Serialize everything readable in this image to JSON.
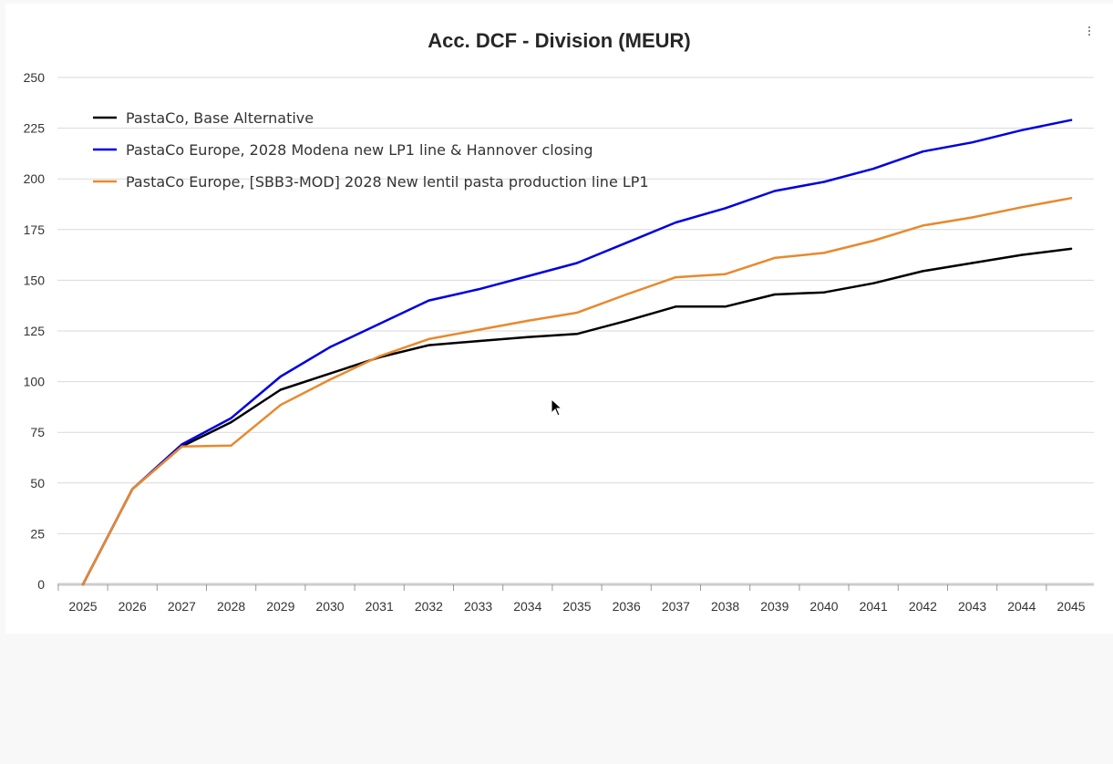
{
  "menu_icon": "more-vertical-icon",
  "chart_data": {
    "type": "line",
    "title": "Acc. DCF - Division (MEUR)",
    "xlabel": "",
    "ylabel": "",
    "ylim": [
      0,
      250
    ],
    "yticks": [
      0,
      25,
      50,
      75,
      100,
      125,
      150,
      175,
      200,
      225,
      250
    ],
    "grid": true,
    "legend_position": "top-left",
    "categories": [
      "2025",
      "2026",
      "2027",
      "2028",
      "2029",
      "2030",
      "2031",
      "2032",
      "2033",
      "2034",
      "2035",
      "2036",
      "2037",
      "2038",
      "2039",
      "2040",
      "2041",
      "2042",
      "2043",
      "2044",
      "2045"
    ],
    "series": [
      {
        "name": "PastaCo, Base Alternative",
        "color": "#000000",
        "values": [
          0,
          47,
          68,
          80,
          96,
          104,
          112,
          118,
          120,
          122,
          123.5,
          130,
          137,
          137,
          143,
          144,
          148.5,
          154.5,
          158.5,
          162.5,
          165.5
        ]
      },
      {
        "name": "PastaCo Europe, 2028 Modena new LP1 line & Hannover closing",
        "color": "#0000e0",
        "values": [
          0,
          47,
          69,
          82,
          102.5,
          117,
          128.5,
          140,
          145.5,
          152,
          158.5,
          168.5,
          178.5,
          185.5,
          194,
          198.5,
          205,
          213.5,
          218,
          224,
          229
        ]
      },
      {
        "name": "PastaCo Europe, [SBB3-MOD] 2028 New lentil pasta production line LP1",
        "color": "#e8892d",
        "values": [
          0,
          47,
          68,
          68.5,
          88.5,
          101,
          112.5,
          121,
          125.5,
          130,
          134,
          143,
          151.5,
          153,
          161,
          163.5,
          169.5,
          177,
          181,
          186,
          190.5
        ]
      }
    ]
  }
}
